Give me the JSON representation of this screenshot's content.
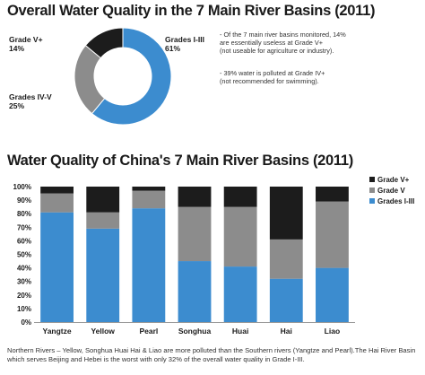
{
  "colors": {
    "grade_v_plus": "#1c1c1c",
    "grade_iv_v": "#8c8c8c",
    "grade_i_iii": "#3c8ccf"
  },
  "chart_data": [
    {
      "type": "pie",
      "title": "Overall Water Quality in the 7 Main River Basins (2011)",
      "slices": [
        {
          "name": "Grades I-III",
          "label": "Grades I-III",
          "pct_label": "61%",
          "value": 61
        },
        {
          "name": "Grades IV-V",
          "label": "Grades IV-V",
          "pct_label": "25%",
          "value": 25
        },
        {
          "name": "Grade V+",
          "label": "Grade V+",
          "pct_label": "14%",
          "value": 14
        }
      ],
      "notes": [
        [
          "- Of the 7 main river basins monitored, 14%",
          "are essentially useless at Grade V+",
          "(not useable for agriculture or industry)."
        ],
        [
          "- 39% water is polluted at Grade IV+",
          "(not recommended for swimming)."
        ]
      ]
    },
    {
      "type": "bar",
      "stacked": true,
      "title": "Water Quality of China's 7 Main River Basins (2011)",
      "categories": [
        "Yangtze",
        "Yellow",
        "Pearl",
        "Songhua",
        "Huai",
        "Hai",
        "Liao"
      ],
      "series": [
        {
          "name": "Grades I-III",
          "values": [
            81,
            69,
            84,
            45,
            41,
            32,
            40
          ]
        },
        {
          "name": "Grade V",
          "values": [
            14,
            12,
            13,
            40,
            44,
            29,
            49
          ]
        },
        {
          "name": "Grade V+",
          "values": [
            5,
            19,
            3,
            15,
            15,
            39,
            11
          ]
        }
      ],
      "legend": [
        "Grade V+",
        "Grade V",
        "Grades I-III"
      ],
      "legend_position": "top-right",
      "yticks": [
        "0%",
        "10%",
        "20%",
        "30%",
        "40%",
        "50%",
        "60%",
        "70%",
        "80%",
        "90%",
        "100%"
      ],
      "ylim": [
        0,
        100
      ]
    }
  ],
  "footer": "Northern Rivers – Yellow, Songhua Huai Hai & Liao are more polluted than the Southern rivers (Yangtze and Pearl).The Hai River Basin which serves Beijing and Hebei is the worst with only 32% of the overall water quality in Grade I-III."
}
